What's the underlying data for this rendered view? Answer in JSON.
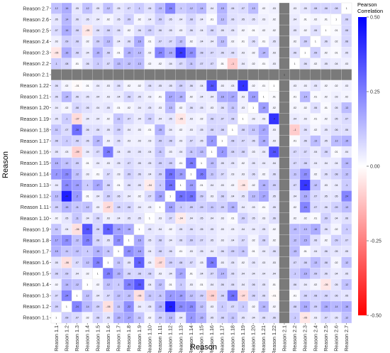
{
  "chart_data": {
    "type": "heatmap",
    "xlabel": "Reason",
    "ylabel": "Reason",
    "legend": {
      "title_line1": "Pearson",
      "title_line2": "Correlation",
      "ticks": [
        "0.50",
        "0.25",
        "0.00",
        "-0.25",
        "-0.50"
      ],
      "tick_values": [
        0.5,
        0.25,
        0,
        -0.25,
        -0.5
      ],
      "placement": "right",
      "color_min": "#ff0000",
      "color_mid": "#ffffff",
      "color_max": "#0000ff"
    },
    "value_range": [
      -0.5,
      0.5
    ],
    "diagonal_label": "1",
    "missing_variable": "Reason 2.1",
    "missing_color": "#7a7a7a",
    "variables": [
      "Reason 1.1",
      "Reason 1.2",
      "Reason 1.3",
      "Reason 1.4",
      "Reason 1.5",
      "Reason 1.6",
      "Reason 1.7",
      "Reason 1.8",
      "Reason 1.9",
      "Reason 1.10",
      "Reason 1.11",
      "Reason 1.12",
      "Reason 1.13",
      "Reason 1.14",
      "Reason 1.15",
      "Reason 1.16",
      "Reason 1.17",
      "Reason 1.18",
      "Reason 1.19",
      "Reason 1.20",
      "Reason 1.21",
      "Reason 1.22",
      "Reason 2.1",
      "Reason 2.2",
      "Reason 2.3",
      "Reason 2.4",
      "Reason 2.5",
      "Reason 2.6",
      "Reason 2.7"
    ],
    "values": [
      [
        1,
        0.09,
        0.07,
        0.02,
        0.08,
        0.05,
        0.15,
        0.17,
        0.11,
        0.02,
        0.09,
        0.13,
        0.04,
        0.2,
        0.15,
        0.05,
        0.08,
        0.11,
        0.05,
        0.04,
        0.06,
        0.06,
        null,
        0.1,
        -0.05,
        0.03,
        0.07,
        0.05,
        0.12
      ],
      [
        0.09,
        1,
        0.24,
        0.14,
        0.09,
        -0.06,
        0.11,
        0.22,
        0.04,
        0.05,
        0.15,
        0.44,
        0.23,
        0.23,
        0.12,
        0.03,
        0.1,
        0.07,
        0.1,
        0.02,
        0.14,
        0.02,
        null,
        0.08,
        0.16,
        0.09,
        0.16,
        0.14,
        0.16
      ],
      [
        0.07,
        0.24,
        1,
        0.12,
        0.04,
        0.07,
        0.12,
        0.12,
        -0.06,
        0.11,
        0.11,
        0.2,
        0.19,
        0.12,
        0.09,
        -0.09,
        0.08,
        0.28,
        -0.07,
        0.08,
        0.06,
        -0.01,
        null,
        0.01,
        0.08,
        0.08,
        0.08,
        0.06,
        0.05
      ],
      [
        0.02,
        0.14,
        0.12,
        1,
        0.02,
        0.12,
        0.1,
        0.25,
        0.33,
        0.04,
        0.12,
        0.01,
        0.1,
        0.03,
        0.01,
        0.04,
        0.06,
        0.06,
        0.04,
        0.06,
        0.05,
        0.01,
        null,
        0.06,
        0.04,
        0.02,
        -0.05,
        0.05,
        0.12
      ],
      [
        0.08,
        0.09,
        0.04,
        0.02,
        1,
        0.25,
        0.15,
        0.08,
        0.08,
        0.08,
        0.03,
        0.04,
        0.17,
        0.01,
        0.04,
        0.07,
        0.14,
        0.06,
        0.04,
        0.04,
        0.04,
        0.04,
        null,
        0.1,
        0.15,
        0.09,
        0.06,
        0.04,
        0.05
      ],
      [
        0.05,
        -0.06,
        0.07,
        0.12,
        0.25,
        1,
        0.11,
        0.05,
        0.31,
        0.03,
        -0.07,
        0.09,
        0.08,
        0.07,
        0.03,
        0.26,
        0.03,
        0.05,
        0.02,
        0.05,
        0.03,
        0.03,
        null,
        0.07,
        0.08,
        0.13,
        0.08,
        0.02,
        0.12
      ],
      [
        0.15,
        0.11,
        0.12,
        0.1,
        0.15,
        0.11,
        1,
        0.22,
        0.18,
        0.04,
        0.08,
        0.06,
        0.01,
        0.03,
        0.05,
        0.04,
        0.06,
        0.09,
        0.11,
        0.01,
        0.04,
        0.06,
        null,
        0.13,
        0.01,
        0.04,
        0.06,
        0.05,
        0.05
      ],
      [
        0.17,
        0.22,
        0.12,
        0.25,
        0.08,
        0.05,
        0.22,
        1,
        0.16,
        0.05,
        0.08,
        0.04,
        0.06,
        0.09,
        0.07,
        0.05,
        0.03,
        0.04,
        0.07,
        0.02,
        0.08,
        0.02,
        null,
        0.12,
        0.15,
        0.06,
        0.02,
        0.09,
        0.07
      ],
      [
        0.11,
        0.04,
        -0.06,
        0.33,
        0.08,
        0.31,
        0.18,
        0.16,
        1,
        0.05,
        0.04,
        0.02,
        0.05,
        0.06,
        0.05,
        0.05,
        0.03,
        0.03,
        0.04,
        0.04,
        0.05,
        0.02,
        null,
        0.13,
        0.13,
        0.16,
        0.06,
        0.02,
        0.1
      ],
      [
        0.02,
        0.05,
        0.11,
        0.04,
        0.08,
        0.03,
        0.04,
        0.05,
        0.05,
        1,
        0.03,
        0.07,
        -0.04,
        0.04,
        0.05,
        0.04,
        0.03,
        0.01,
        0.09,
        0.05,
        0.03,
        0.06,
        null,
        0.02,
        0.02,
        0.01,
        0.09,
        0.04,
        0.06
      ],
      [
        0.09,
        0.15,
        0.11,
        0.12,
        0.03,
        -0.07,
        0.08,
        0.08,
        0.04,
        0.03,
        1,
        0.18,
        0.1,
        0.09,
        0.09,
        0.11,
        0.09,
        0.15,
        0.04,
        0.03,
        0.01,
        0.05,
        null,
        0.02,
        0.24,
        0.07,
        0.06,
        0.09,
        0.13
      ],
      [
        0.13,
        0.44,
        0.2,
        0.01,
        0.04,
        0.09,
        0.06,
        0.04,
        0.02,
        0.07,
        0.18,
        1,
        0.28,
        0.28,
        0.09,
        0.03,
        0.08,
        0.04,
        0.05,
        0.13,
        0.17,
        0.05,
        null,
        0.04,
        0.16,
        0.07,
        0.05,
        0.05,
        0.24
      ],
      [
        0.04,
        0.23,
        0.19,
        0.1,
        0.17,
        0.08,
        0.01,
        0.06,
        0.05,
        -0.04,
        0.1,
        0.28,
        1,
        0.19,
        0.01,
        0.04,
        0.03,
        0.02,
        -0.05,
        0.02,
        0.15,
        0.09,
        null,
        0.07,
        0.39,
        0.12,
        0.03,
        0.04,
        0.1
      ],
      [
        0.2,
        0.23,
        0.12,
        0.03,
        0.01,
        0.07,
        0.03,
        0.09,
        0.06,
        0.04,
        0.09,
        0.28,
        0.19,
        1,
        0.26,
        0.11,
        0.07,
        0.03,
        0.03,
        0.06,
        0.02,
        0.06,
        null,
        0.11,
        0.22,
        0.02,
        0.06,
        0.08,
        0.12
      ],
      [
        0.15,
        0.12,
        0.09,
        0.01,
        0.04,
        0.03,
        0.05,
        0.07,
        0.05,
        0.05,
        0.09,
        0.09,
        0.01,
        0.26,
        1,
        0.13,
        0.05,
        0.05,
        0.02,
        0.05,
        0.04,
        0.04,
        null,
        0.07,
        0.08,
        0.04,
        0.04,
        0.04,
        0.14
      ],
      [
        0.05,
        0.03,
        -0.09,
        0.04,
        0.07,
        0.26,
        0.04,
        0.05,
        0.05,
        0.04,
        0.11,
        0.03,
        0.04,
        0.11,
        0.13,
        1,
        0.2,
        0.08,
        0.08,
        0.03,
        0.04,
        0.34,
        null,
        0.07,
        0.07,
        0.04,
        0.08,
        0.01,
        0.04
      ],
      [
        0.08,
        0.1,
        0.08,
        0.06,
        0.14,
        0.03,
        0.06,
        0.03,
        0.03,
        0.03,
        0.09,
        0.08,
        0.03,
        0.07,
        0.05,
        0.2,
        1,
        0.08,
        0.07,
        0.06,
        0.16,
        0.03,
        null,
        0.01,
        0.06,
        0.13,
        0.05,
        0.13,
        0.15
      ],
      [
        0.11,
        0.07,
        0.28,
        0.06,
        0.06,
        0.05,
        0.09,
        0.04,
        0.03,
        0.01,
        0.15,
        0.04,
        0.02,
        0.03,
        0.05,
        0.08,
        0.08,
        1,
        0.08,
        0.11,
        0.17,
        0.03,
        null,
        -0.1,
        0.06,
        0.02,
        0.05,
        0.06,
        0.06
      ],
      [
        0.05,
        0.1,
        -0.07,
        0.04,
        0.04,
        0.02,
        0.11,
        0.07,
        0.04,
        0.09,
        0.04,
        0.05,
        -0.05,
        0.03,
        0.02,
        0.08,
        0.07,
        0.08,
        1,
        0.03,
        0.03,
        0.4,
        null,
        0.04,
        0.03,
        0.01,
        0.02,
        0.05,
        0.07
      ],
      [
        0.04,
        0.02,
        0.08,
        0.06,
        0.04,
        0.05,
        0.01,
        0.02,
        0.04,
        0.05,
        0.03,
        0.13,
        0.02,
        0.06,
        0.05,
        0.03,
        0.06,
        0.11,
        0.03,
        1,
        0.19,
        0.02,
        null,
        0.02,
        0.02,
        0.06,
        0.01,
        0.05,
        0.13
      ],
      [
        0.06,
        0.14,
        0.06,
        0.05,
        0.04,
        0.03,
        0.04,
        0.08,
        0.05,
        0.03,
        0.01,
        0.17,
        0.15,
        0.02,
        0.04,
        0.04,
        0.16,
        0.17,
        0.03,
        0.19,
        1,
        0.01,
        null,
        0.01,
        0.14,
        0.01,
        0.02,
        0.03,
        0.02
      ],
      [
        0.06,
        0.02,
        -0.01,
        0.01,
        0.04,
        0.03,
        0.06,
        0.02,
        0.02,
        0.06,
        0.05,
        0.05,
        0.09,
        0.06,
        0.04,
        0.34,
        0.03,
        0.03,
        0.4,
        0.02,
        0.01,
        1,
        null,
        0.03,
        0.03,
        0.05,
        0.02,
        0.02,
        0.03
      ],
      [
        null,
        null,
        null,
        null,
        null,
        null,
        null,
        null,
        null,
        null,
        null,
        null,
        null,
        null,
        null,
        null,
        null,
        null,
        null,
        null,
        null,
        null,
        1,
        null,
        null,
        null,
        null,
        null,
        null
      ],
      [
        0.1,
        0.08,
        0.01,
        0.06,
        0.1,
        0.07,
        0.13,
        0.12,
        0.13,
        0.02,
        0.02,
        0.04,
        0.07,
        0.11,
        0.07,
        0.07,
        0.01,
        -0.1,
        0.04,
        0.02,
        0.01,
        0.03,
        null,
        1,
        0.06,
        0.02,
        0.05,
        0.04,
        0.03
      ],
      [
        -0.05,
        0.16,
        0.08,
        0.04,
        0.15,
        0.08,
        0.01,
        0.15,
        0.13,
        0.02,
        0.24,
        0.16,
        0.39,
        0.22,
        0.08,
        0.07,
        0.06,
        0.06,
        0.03,
        0.02,
        0.14,
        0.03,
        null,
        0.06,
        1,
        0.09,
        0.02,
        0.01,
        0.05
      ],
      [
        0.03,
        0.09,
        0.08,
        0.02,
        0.09,
        0.13,
        0.04,
        0.06,
        0.16,
        0.01,
        0.07,
        0.07,
        0.12,
        0.02,
        0.04,
        0.04,
        0.13,
        0.02,
        0.01,
        0.06,
        0.01,
        0.05,
        null,
        0.02,
        0.09,
        1,
        0.06,
        0.02,
        0.08
      ],
      [
        0.07,
        0.16,
        0.08,
        -0.05,
        0.06,
        0.08,
        0.06,
        0.02,
        0.06,
        0.09,
        0.06,
        0.05,
        0.03,
        0.06,
        0.04,
        0.08,
        0.05,
        0.05,
        0.02,
        0.01,
        0.02,
        0.02,
        null,
        0.05,
        0.02,
        0.06,
        1,
        0.01,
        0.08
      ],
      [
        0.05,
        0.14,
        0.06,
        0.05,
        0.04,
        0.02,
        0.05,
        0.09,
        0.02,
        0.04,
        0.09,
        0.05,
        0.04,
        0.08,
        0.04,
        0.01,
        0.13,
        0.06,
        0.05,
        0.05,
        0.03,
        0.02,
        null,
        0.04,
        0.01,
        0.02,
        0.01,
        1,
        0.08
      ],
      [
        0.12,
        0.16,
        0.05,
        0.12,
        0.05,
        0.12,
        0.05,
        0.07,
        0.1,
        0.06,
        0.13,
        0.24,
        0.1,
        0.12,
        0.14,
        0.04,
        0.15,
        0.06,
        0.07,
        0.13,
        0.02,
        0.03,
        null,
        0.03,
        0.05,
        0.08,
        0.08,
        0.08,
        1
      ]
    ]
  }
}
